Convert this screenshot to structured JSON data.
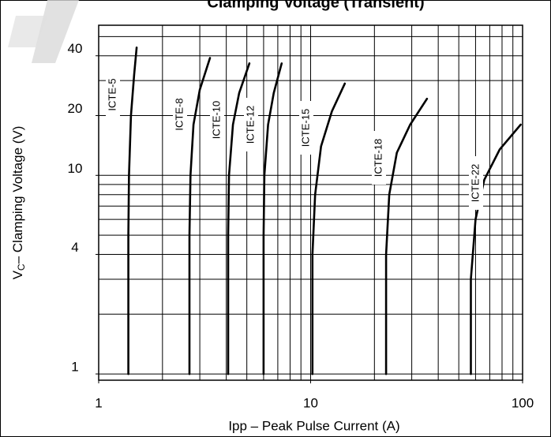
{
  "chart_data": {
    "type": "line",
    "title": "Clamping Voltage (Transient)",
    "xlabel": "Ipp – Peak Pulse Current (A)",
    "ylabel": {
      "main": "V",
      "sub": "C",
      "rest": "– Clamping Voltage (V)"
    },
    "log_x": true,
    "log_y": true,
    "grid": true,
    "color": "#000000",
    "xlim": [
      1,
      100
    ],
    "ylim": [
      0.93,
      57
    ],
    "xticks": [
      1,
      10,
      100
    ],
    "yticks": [
      1,
      4,
      10,
      20,
      40
    ],
    "xgrid": [
      1,
      2,
      3,
      4,
      5,
      6,
      7,
      8,
      9,
      10,
      20,
      30,
      40,
      50,
      60,
      70,
      80,
      90,
      100
    ],
    "ygrid": [
      1,
      2,
      3,
      4,
      5,
      6,
      7,
      8,
      9,
      10,
      20,
      30,
      40,
      50
    ],
    "series": [
      {
        "name": "ICTE-5",
        "x": [
          1.38,
          1.38,
          1.39,
          1.42,
          1.47,
          1.51
        ],
        "values": [
          1,
          5,
          10,
          20,
          32,
          44
        ]
      },
      {
        "name": "ICTE-8",
        "x": [
          2.68,
          2.68,
          2.71,
          2.8,
          3.0,
          3.35
        ],
        "values": [
          1,
          5,
          10,
          18,
          27,
          39
        ]
      },
      {
        "name": "ICTE-10",
        "x": [
          4.08,
          4.08,
          4.12,
          4.3,
          4.6,
          5.14
        ],
        "values": [
          1,
          5,
          10,
          18,
          26,
          36.6
        ]
      },
      {
        "name": "ICTE-12",
        "x": [
          6.0,
          6.0,
          6.05,
          6.3,
          6.7,
          7.3
        ],
        "values": [
          1,
          5,
          10,
          18,
          26,
          36.6
        ]
      },
      {
        "name": "ICTE-15",
        "x": [
          10.2,
          10.2,
          10.5,
          11.2,
          12.6,
          14.5
        ],
        "values": [
          1,
          4,
          8,
          14,
          21,
          29
        ]
      },
      {
        "name": "ICTE-18",
        "x": [
          22.7,
          22.7,
          23.5,
          25.5,
          29.5,
          35.4
        ],
        "values": [
          1,
          4,
          8,
          13,
          18,
          24.3
        ]
      },
      {
        "name": "ICTE-22",
        "x": [
          57,
          57,
          60,
          66,
          78,
          98
        ],
        "values": [
          1,
          3,
          6,
          9.5,
          13.5,
          18
        ]
      }
    ]
  }
}
